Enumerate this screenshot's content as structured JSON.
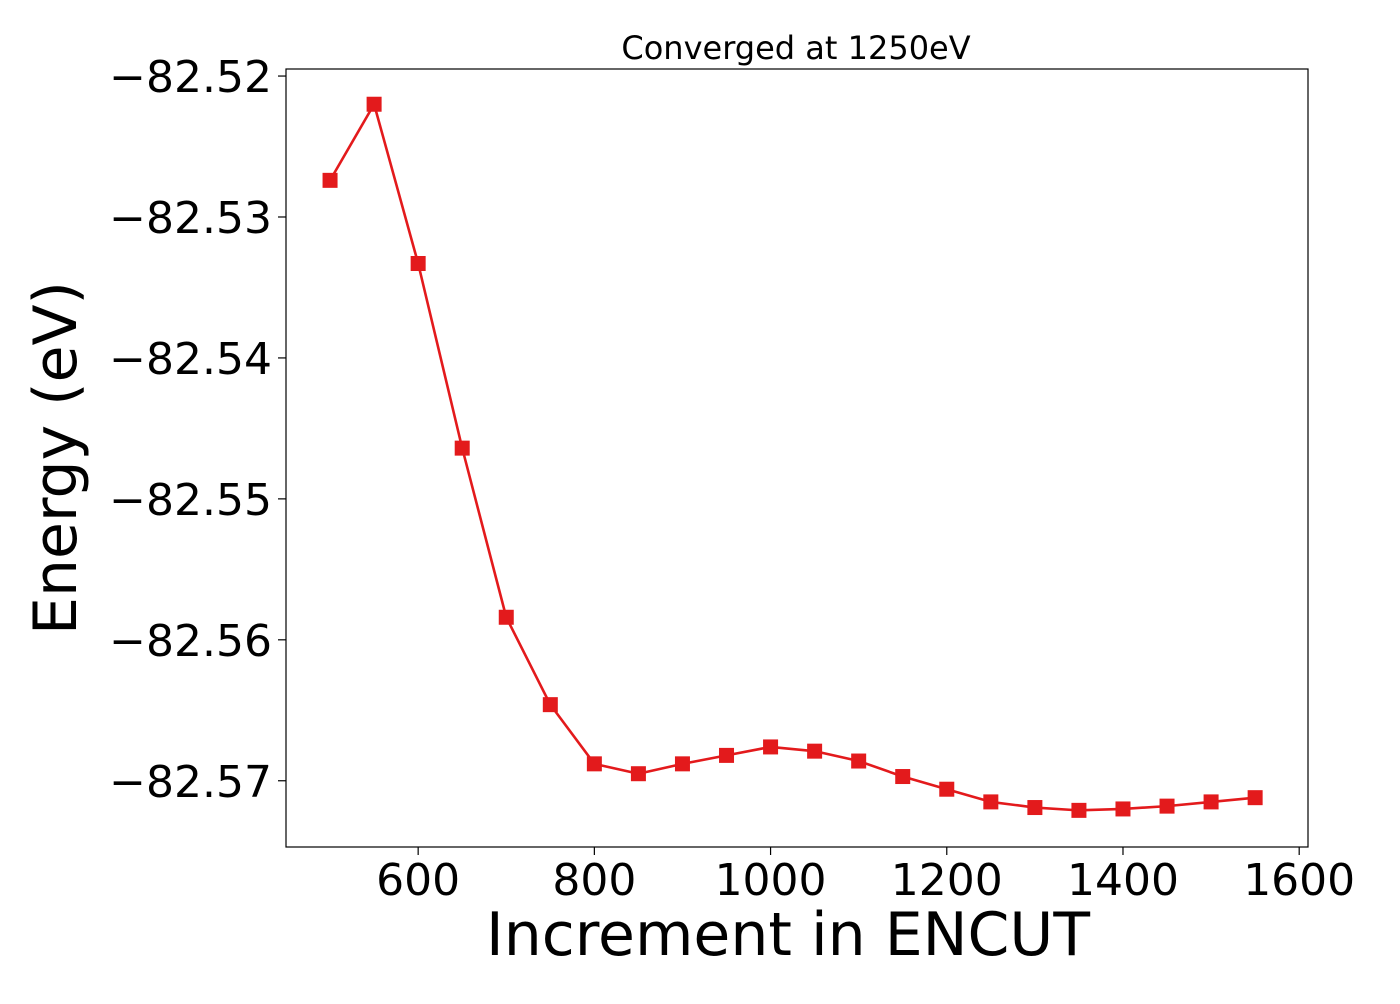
{
  "chart_data": {
    "type": "line",
    "title": "Converged at 1250eV",
    "xlabel": "Increment in ENCUT",
    "ylabel": "Energy (eV)",
    "xlim": [
      450,
      1610
    ],
    "ylim": [
      -82.5747,
      -82.5195
    ],
    "xticks": [
      600,
      800,
      1000,
      1200,
      1400,
      1600
    ],
    "yticks": [
      -82.52,
      -82.53,
      -82.54,
      -82.55,
      -82.56,
      -82.57
    ],
    "ytick_labels": [
      "−82.52",
      "−82.53",
      "−82.54",
      "−82.55",
      "−82.56",
      "−82.57"
    ],
    "grid": false,
    "legend": "none",
    "series": [
      {
        "color": "#e31a1c",
        "marker": "square",
        "x": [
          500,
          550,
          600,
          650,
          700,
          750,
          800,
          850,
          900,
          950,
          1000,
          1050,
          1100,
          1150,
          1200,
          1250,
          1300,
          1350,
          1400,
          1450,
          1500,
          1550
        ],
        "y": [
          -82.5274,
          -82.522,
          -82.5333,
          -82.5464,
          -82.5584,
          -82.5646,
          -82.5688,
          -82.5695,
          -82.5688,
          -82.5682,
          -82.5676,
          -82.5679,
          -82.5686,
          -82.5697,
          -82.5706,
          -82.5715,
          -82.5719,
          -82.5721,
          -82.572,
          -82.5718,
          -82.5715,
          -82.5712
        ]
      }
    ]
  }
}
